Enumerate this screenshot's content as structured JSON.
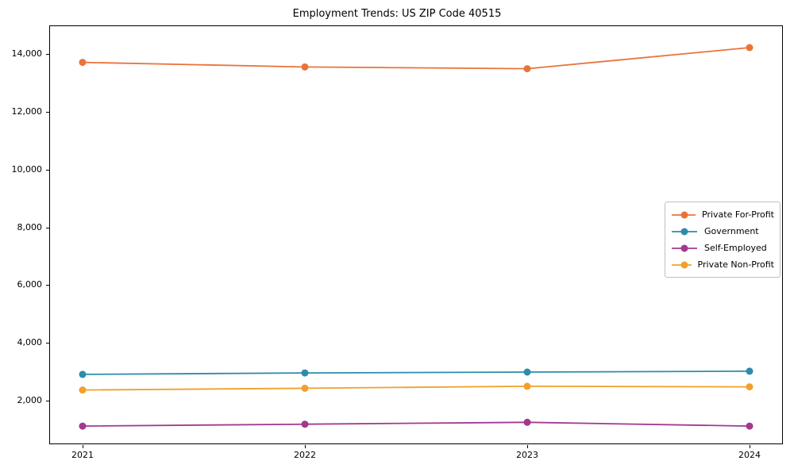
{
  "chart_data": {
    "type": "line",
    "title": "Employment Trends: US ZIP Code 40515",
    "x": [
      2021,
      2022,
      2023,
      2024
    ],
    "x_tick_labels": [
      "2021",
      "2022",
      "2023",
      "2024"
    ],
    "y_ticks": [
      2000,
      4000,
      6000,
      8000,
      10000,
      12000,
      14000
    ],
    "y_tick_labels": [
      "2,000",
      "4,000",
      "6,000",
      "8,000",
      "10,000",
      "12,000",
      "14,000"
    ],
    "xlim": [
      2020.85,
      2024.15
    ],
    "ylim": [
      490,
      15000
    ],
    "grid": false,
    "legend_position": "center-right",
    "axis_color": "#000000",
    "background": "#ffffff",
    "series": [
      {
        "name": "Private For-Profit",
        "color": "#e8743b",
        "values": [
          13720,
          13560,
          13500,
          14230
        ]
      },
      {
        "name": "Government",
        "color": "#2e8bab",
        "values": [
          2910,
          2960,
          2990,
          3020
        ]
      },
      {
        "name": "Self-Employed",
        "color": "#a2398e",
        "values": [
          1120,
          1185,
          1250,
          1120
        ]
      },
      {
        "name": "Private Non-Profit",
        "color": "#f2a02b",
        "values": [
          2370,
          2430,
          2500,
          2480
        ]
      }
    ]
  }
}
